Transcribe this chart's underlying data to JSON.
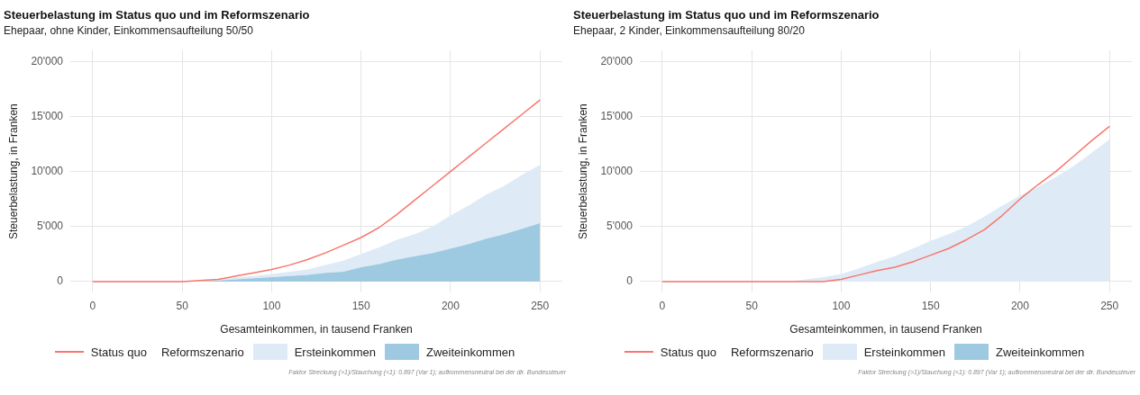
{
  "chart_data": [
    {
      "type": "area",
      "title": "Steuerbelastung im Status quo und im Reformszenario",
      "subtitle": "Ehepaar, ohne Kinder, Einkommensaufteilung 50/50",
      "xlabel": "Gesamteinkommen, in tausend Franken",
      "ylabel": "Steuerbelastung, in Franken",
      "legend_title": "Reformszenario",
      "legend": "bottom",
      "grid": true,
      "stacked": true,
      "x": [
        0,
        10,
        20,
        30,
        40,
        50,
        60,
        70,
        80,
        90,
        100,
        110,
        120,
        130,
        140,
        150,
        160,
        170,
        180,
        190,
        200,
        210,
        220,
        230,
        240,
        250
      ],
      "series": [
        {
          "name": "Status quo",
          "type": "line",
          "color": "#f8766d",
          "values": [
            0,
            0,
            0,
            0,
            0,
            0,
            100,
            200,
            500,
            800,
            1100,
            1500,
            2000,
            2600,
            3300,
            4000,
            4900,
            6100,
            7400,
            8700,
            10000,
            11300,
            12600,
            13900,
            15200,
            16500
          ]
        },
        {
          "name": "Zweiteinkommen",
          "color": "#9ecae1",
          "values": [
            0,
            0,
            0,
            0,
            0,
            0,
            0,
            100,
            200,
            300,
            400,
            500,
            600,
            800,
            900,
            1300,
            1600,
            2000,
            2300,
            2600,
            3000,
            3400,
            3900,
            4300,
            4800,
            5300
          ]
        },
        {
          "name": "Ersteinkommen",
          "color": "#deebf7",
          "values": [
            0,
            0,
            0,
            0,
            0,
            0,
            0,
            100,
            200,
            200,
            300,
            400,
            500,
            700,
            1000,
            1200,
            1500,
            1800,
            2000,
            2400,
            3000,
            3500,
            4000,
            4400,
            4900,
            5300
          ]
        }
      ],
      "xlim": [
        -12.5,
        262.5
      ],
      "xticks": [
        0,
        50,
        100,
        150,
        200,
        250
      ],
      "ylim": [
        -1000,
        21000
      ],
      "yticks": [
        0,
        {
          "value": 5000,
          "label": "5'000"
        },
        {
          "value": 10000,
          "label": "10'000"
        },
        {
          "value": 15000,
          "label": "15'000"
        },
        {
          "value": 20000,
          "label": "20'000"
        }
      ],
      "annotations": [
        "Faktor Streckung (>1)/Stauchung (<1): 0.897 (Var 1); aufkommensneutral bei der dir. Bundessteuer"
      ]
    },
    {
      "type": "area",
      "title": "Steuerbelastung im Status quo und im Reformszenario",
      "subtitle": "Ehepaar, 2 Kinder, Einkommensaufteilung 80/20",
      "xlabel": "Gesamteinkommen, in tausend Franken",
      "ylabel": "Steuerbelastung, in Franken",
      "legend_title": "Reformszenario",
      "legend": "bottom",
      "grid": true,
      "stacked": true,
      "x": [
        0,
        10,
        20,
        30,
        40,
        50,
        60,
        70,
        80,
        90,
        100,
        110,
        120,
        130,
        140,
        150,
        160,
        170,
        180,
        190,
        200,
        210,
        220,
        230,
        240,
        250
      ],
      "series": [
        {
          "name": "Status quo",
          "type": "line",
          "color": "#f8766d",
          "values": [
            0,
            0,
            0,
            0,
            0,
            0,
            0,
            0,
            0,
            0,
            200,
            600,
            1000,
            1300,
            1800,
            2400,
            3000,
            3800,
            4700,
            6000,
            7500,
            8800,
            10000,
            11400,
            12800,
            14100
          ]
        },
        {
          "name": "Zweiteinkommen",
          "color": "#9ecae1",
          "values": [
            null,
            null,
            null,
            null,
            null,
            null,
            null,
            null,
            null,
            null,
            null,
            null,
            null,
            null,
            null,
            null,
            null,
            null,
            null,
            null,
            null,
            null,
            null,
            null,
            null,
            null
          ]
        },
        {
          "name": "Ersteinkommen",
          "color": "#deebf7",
          "values": [
            0,
            0,
            0,
            0,
            0,
            0,
            0,
            0,
            200,
            400,
            700,
            1200,
            1800,
            2300,
            3000,
            3700,
            4300,
            5000,
            5900,
            6900,
            7800,
            8600,
            9500,
            10500,
            11700,
            12900
          ]
        }
      ],
      "xlim": [
        -12.5,
        262.5
      ],
      "xticks": [
        0,
        50,
        100,
        150,
        200,
        250
      ],
      "ylim": [
        -1000,
        21000
      ],
      "yticks": [
        0,
        {
          "value": 5000,
          "label": "5'000"
        },
        {
          "value": 10000,
          "label": "10'000"
        },
        {
          "value": 15000,
          "label": "15'000"
        },
        {
          "value": 20000,
          "label": "20'000"
        }
      ],
      "annotations": [
        "Faktor Streckung (>1)/Stauchung (<1): 0.897 (Var 1); aufkommensneutral bei der dir. Bundessteuer"
      ]
    }
  ]
}
